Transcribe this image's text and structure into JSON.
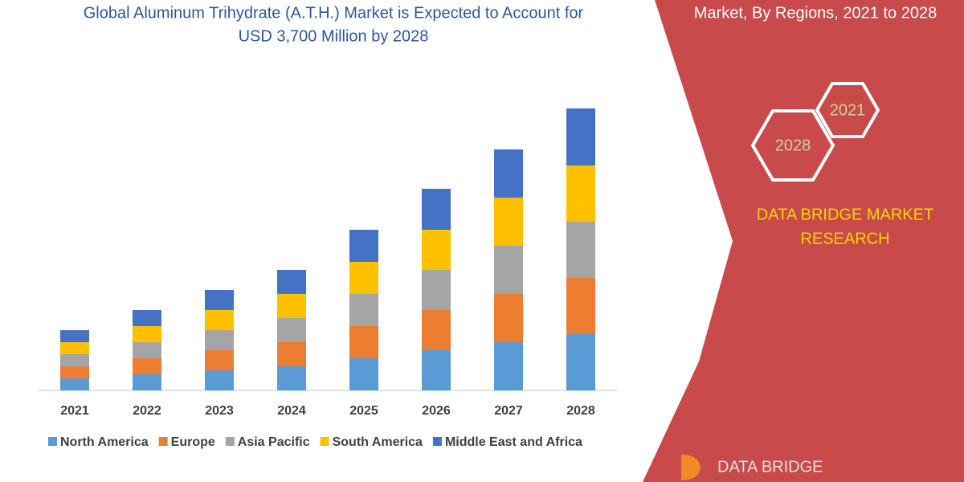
{
  "chart_data": {
    "type": "stacked-bar",
    "title": [
      "Global Aluminum Trihydrate (A.T.H.) Market is Expected to Account for",
      "USD 3,700 Million by 2028"
    ],
    "categories": [
      "2021",
      "2022",
      "2023",
      "2024",
      "2025",
      "2026",
      "2027",
      "2028"
    ],
    "series": [
      {
        "name": "North America",
        "color": "#5b9bd5",
        "values": [
          15,
          20,
          25,
          30,
          40,
          50,
          60,
          70
        ]
      },
      {
        "name": "Europe",
        "color": "#ed7d31",
        "values": [
          15,
          20,
          25,
          30,
          40,
          50,
          60,
          70
        ]
      },
      {
        "name": "Asia Pacific",
        "color": "#a5a5a5",
        "values": [
          15,
          20,
          25,
          30,
          40,
          50,
          60,
          70
        ]
      },
      {
        "name": "South America",
        "color": "#ffc000",
        "values": [
          15,
          20,
          25,
          30,
          40,
          50,
          60,
          70
        ]
      },
      {
        "name": "Middle East and Africa",
        "color": "#4472c4",
        "values": [
          15,
          20,
          25,
          30,
          40,
          51,
          60,
          71
        ]
      }
    ]
  },
  "panel": {
    "subtitle": "Market, By Regions, 2021 to 2028",
    "hexagons": [
      "2021",
      "2028"
    ],
    "brand": [
      "DATA BRIDGE MARKET",
      "RESEARCH"
    ],
    "logo": "DATA BRIDGE"
  }
}
